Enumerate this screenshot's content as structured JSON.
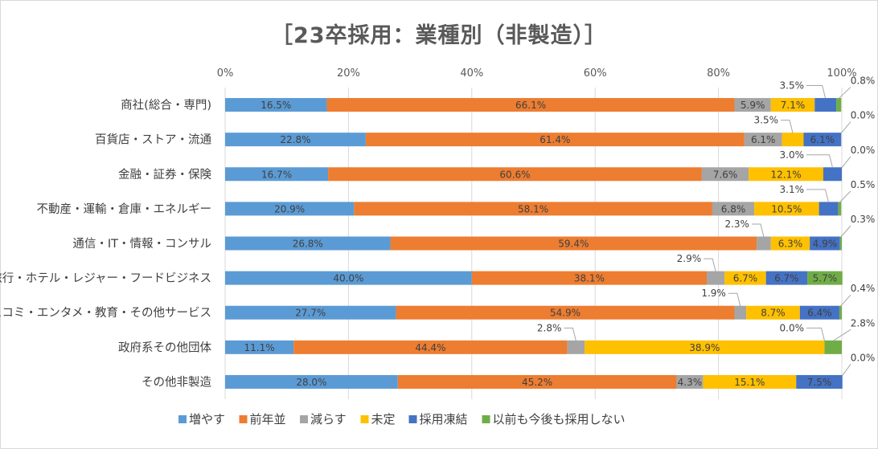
{
  "title": "［23卒採用：業種別（非製造）］",
  "chart_data": {
    "type": "bar",
    "orientation": "horizontal",
    "stacked": "percent",
    "title": "［23卒採用：業種別（非製造）］",
    "x_ticks": [
      "0%",
      "20%",
      "40%",
      "60%",
      "80%",
      "100%"
    ],
    "xlim": [
      0,
      100
    ],
    "grid": true,
    "legend_position": "bottom",
    "categories": [
      "商社(総合・専門)",
      "百貨店・ストア・流通",
      "金融・証券・保険",
      "不動産・運輸・倉庫・エネルギー",
      "通信・IT・情報・コンサル",
      "旅行・ホテル・レジャー・フードビジネス",
      "マスコミ・エンタメ・教育・その他サービス",
      "政府系その他団体",
      "その他非製造"
    ],
    "series": [
      {
        "name": "増やす",
        "color": "#5b9bd5",
        "values": [
          16.5,
          22.8,
          16.7,
          20.9,
          26.8,
          40.0,
          27.7,
          11.1,
          28.0
        ],
        "labels": [
          "16.5%",
          "22.8%",
          "16.7%",
          "20.9%",
          "26.8%",
          "40.0%",
          "27.7%",
          "11.1%",
          "28.0%"
        ]
      },
      {
        "name": "前年並",
        "color": "#ed7d31",
        "values": [
          66.1,
          61.4,
          60.6,
          58.1,
          59.4,
          38.1,
          54.9,
          44.4,
          45.2
        ],
        "labels": [
          "66.1%",
          "61.4%",
          "60.6%",
          "58.1%",
          "59.4%",
          "38.1%",
          "54.9%",
          "44.4%",
          "45.2%"
        ]
      },
      {
        "name": "減らす",
        "color": "#a5a5a5",
        "values": [
          5.9,
          6.1,
          7.6,
          6.8,
          2.3,
          2.9,
          1.9,
          2.8,
          4.3
        ],
        "labels": [
          "5.9%",
          "6.1%",
          "7.6%",
          "6.8%",
          "2.3%",
          "2.9%",
          "1.9%",
          "2.8%",
          "4.3%"
        ]
      },
      {
        "name": "未定",
        "color": "#ffc000",
        "values": [
          7.1,
          3.5,
          12.1,
          10.5,
          6.3,
          6.7,
          8.7,
          38.9,
          15.1
        ],
        "labels": [
          "7.1%",
          "3.5%",
          "12.1%",
          "10.5%",
          "6.3%",
          "6.7%",
          "8.7%",
          "38.9%",
          "15.1%"
        ]
      },
      {
        "name": "採用凍結",
        "color": "#4472c4",
        "values": [
          3.5,
          6.1,
          3.0,
          3.1,
          4.9,
          6.7,
          6.4,
          0.0,
          7.5
        ],
        "labels": [
          "3.5%",
          "6.1%",
          "3.0%",
          "3.1%",
          "4.9%",
          "6.7%",
          "6.4%",
          "0.0%",
          "7.5%"
        ]
      },
      {
        "name": "以前も今後も採用しない",
        "color": "#70ad47",
        "values": [
          0.8,
          0.0,
          0.0,
          0.5,
          0.3,
          5.7,
          0.4,
          2.8,
          0.0
        ],
        "labels": [
          "0.8%",
          "0.0%",
          "0.0%",
          "0.5%",
          "0.3%",
          "5.7%",
          "0.4%",
          "2.8%",
          "0.0%"
        ]
      }
    ]
  }
}
